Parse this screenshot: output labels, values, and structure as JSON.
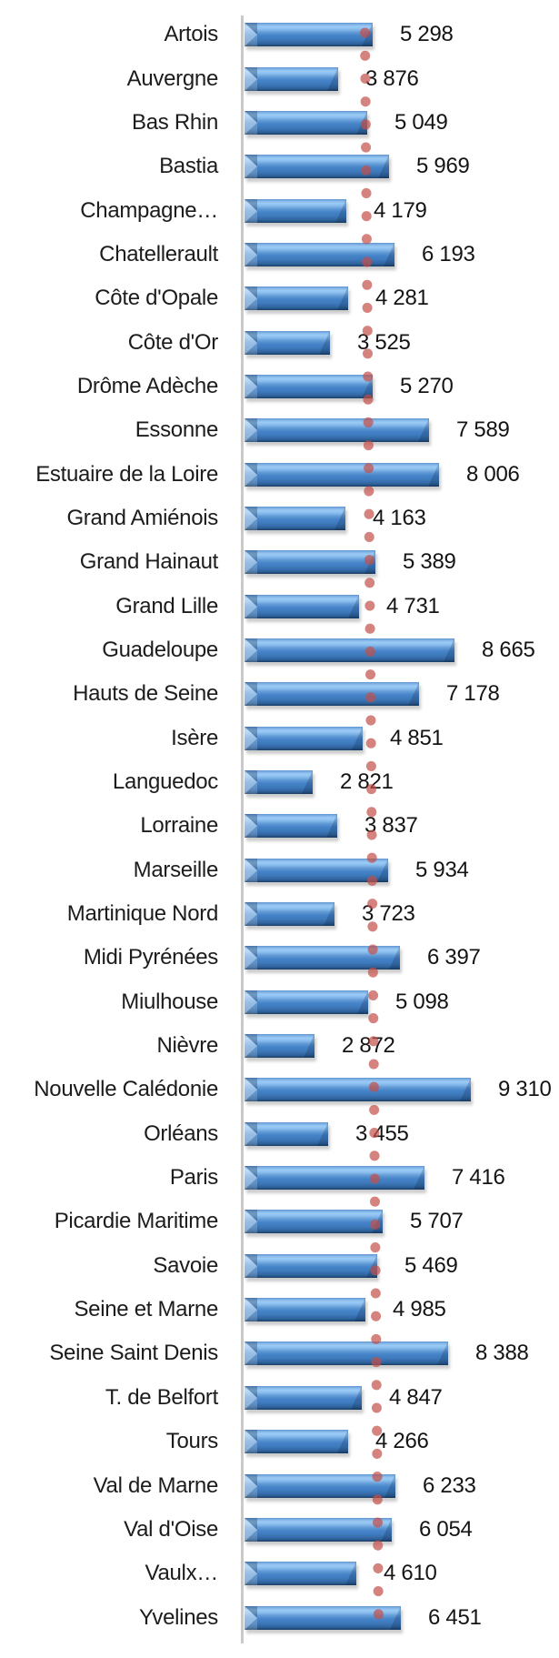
{
  "chart_data": {
    "type": "bar",
    "orientation": "horizontal",
    "title": "",
    "xlabel": "",
    "ylabel": "",
    "grid": false,
    "legend": false,
    "xlim": [
      0,
      10000
    ],
    "categories": [
      "Artois",
      "Auvergne",
      "Bas Rhin",
      "Bastia",
      "Champagne…",
      "Chatellerault",
      "Côte d'Opale",
      "Côte d'Or",
      "Drôme Adèche",
      "Essonne",
      "Estuaire de la Loire",
      "Grand Amiénois",
      "Grand Hainaut",
      "Grand Lille",
      "Guadeloupe",
      "Hauts de Seine",
      "Isère",
      "Languedoc",
      "Lorraine",
      "Marseille",
      "Martinique Nord",
      "Midi Pyrénées",
      "Miulhouse",
      "Nièvre",
      "Nouvelle Calédonie",
      "Orléans",
      "Paris",
      "Picardie Maritime",
      "Savoie",
      "Seine et Marne",
      "Seine Saint Denis",
      "T. de Belfort",
      "Tours",
      "Val de Marne",
      "Val d'Oise",
      "Vaulx…",
      "Yvelines"
    ],
    "values": [
      5298,
      3876,
      5049,
      5969,
      4179,
      6193,
      4281,
      3525,
      5270,
      7589,
      8006,
      4163,
      5389,
      4731,
      8665,
      7178,
      4851,
      2821,
      3837,
      5934,
      3723,
      6397,
      5098,
      2872,
      9310,
      3455,
      7416,
      5707,
      5469,
      4985,
      8388,
      4847,
      4266,
      6233,
      6054,
      4610,
      6451
    ],
    "value_labels": [
      "5 298",
      "3 876",
      "5 049",
      "5 969",
      "4 179",
      "6 193",
      "4 281",
      "3 525",
      "5 270",
      "7 589",
      "8 006",
      "4 163",
      "5 389",
      "4 731",
      "8 665",
      "7 178",
      "4 851",
      "2 821",
      "3 837",
      "5 934",
      "3 723",
      "6 397",
      "5 098",
      "2 872",
      "9 310",
      "3 455",
      "7 416",
      "5 707",
      "5 469",
      "4 985",
      "8 388",
      "4 847",
      "4 266",
      "6 233",
      "6 054",
      "4 610",
      "6 451"
    ],
    "reference_line": {
      "style": "dotted",
      "orientation": "vertical",
      "color": "#C0504D",
      "approx_value": 5200
    },
    "colors": {
      "bar_main": "#4583C8",
      "bar_highlight": "#9BCBF5",
      "bar_dark": "#1F4A77",
      "axis_line": "#C9C9C9",
      "category_text": "#1C1C1C",
      "value_text": "#141414",
      "dot_line": "#C3504B"
    }
  }
}
